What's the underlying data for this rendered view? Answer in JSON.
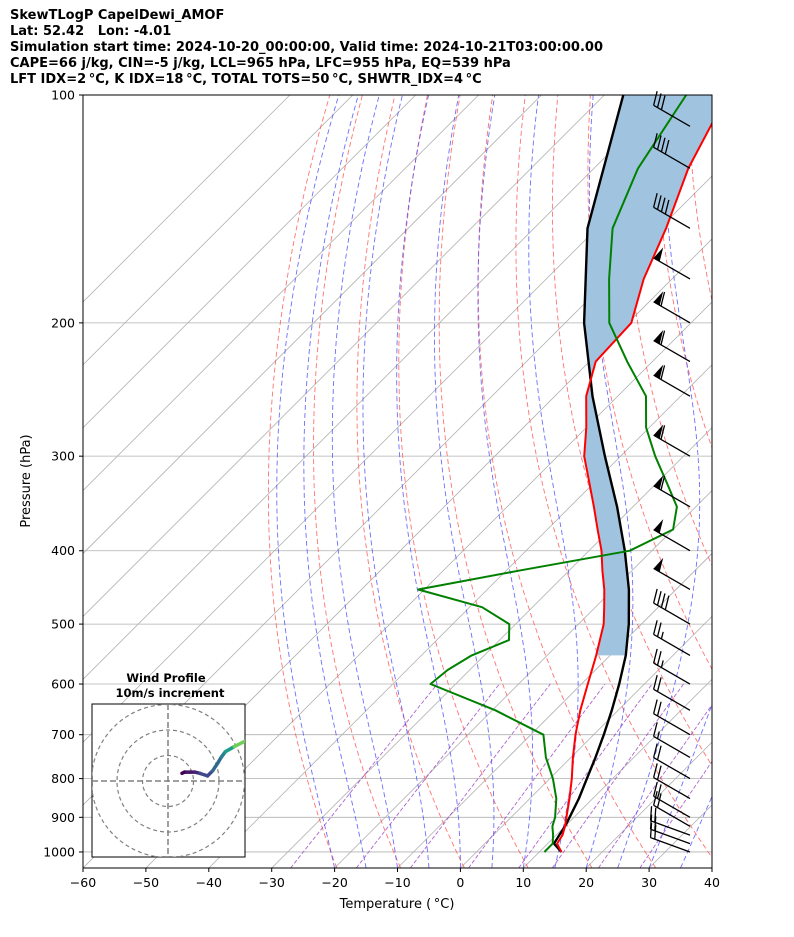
{
  "header": {
    "line1": "SkewTLogP CapelDewi_AMOF",
    "line2": "Lat: 52.42   Lon: -4.01",
    "line3": "Simulation start time: 2024-10-20_00:00:00, Valid time: 2024-10-21T03:00:00.00",
    "line4": "CAPE=66 j/kg, CIN=-5 j/kg, LCL=965 hPa, LFC=955 hPa, EQ=539 hPa",
    "line5": "LFT IDX=2 °C, K IDX=18 °C, TOTAL TOTS=50 °C, SHWTR_IDX=4 °C"
  },
  "chart_data": {
    "type": "line",
    "subtype": "skew-T log-P",
    "xlabel": "Temperature ( °C)",
    "ylabel": "Pressure (hPa)",
    "xlim": [
      -60,
      40
    ],
    "ylim": [
      1050,
      100
    ],
    "y_scale": "log",
    "x_ticks": [
      -60,
      -50,
      -40,
      -30,
      -20,
      -10,
      0,
      10,
      20,
      30,
      40
    ],
    "x_tick_labels": [
      "−60",
      "−50",
      "−40",
      "−30",
      "−20",
      "−10",
      "0",
      "10",
      "20",
      "30",
      "40"
    ],
    "y_ticks": [
      100,
      200,
      300,
      400,
      500,
      600,
      700,
      800,
      900,
      1000
    ],
    "y_tick_labels": [
      "100",
      "200",
      "300",
      "400",
      "500",
      "600",
      "700",
      "800",
      "900",
      "1000"
    ],
    "grid": true,
    "colors": {
      "temperature": "#ff0000",
      "dewpoint": "#008000",
      "parcel": "#000000",
      "cape_fill": "#a0c4e0",
      "dry_adiabat": "#ff5050",
      "moist_adiabat": "#4a4aff",
      "mixing_ratio": "#9a40c0",
      "isotherm": "#b0b0b0"
    },
    "series": [
      {
        "key": "temperature",
        "pressure": [
          1000,
          975,
          950,
          925,
          900,
          850,
          800,
          750,
          700,
          650,
          600,
          550,
          500,
          475,
          450,
          425,
          400,
          375,
          350,
          325,
          300,
          275,
          250,
          225,
          200,
          175,
          150,
          125,
          100
        ],
        "values": [
          13.5,
          11.5,
          11.0,
          10.0,
          8.8,
          6.3,
          3.5,
          0.3,
          -2.9,
          -6.0,
          -9.0,
          -12.2,
          -16.0,
          -18.6,
          -21.4,
          -24.7,
          -28.0,
          -32.0,
          -36.2,
          -40.8,
          -45.8,
          -50.0,
          -55.0,
          -59.0,
          -59.5,
          -64.5,
          -69.0,
          -75.0,
          -80.5
        ]
      },
      {
        "key": "dewpoint",
        "pressure": [
          1000,
          975,
          950,
          925,
          900,
          850,
          800,
          750,
          700,
          650,
          600,
          575,
          550,
          525,
          500,
          475,
          450,
          425,
          400,
          375,
          350,
          325,
          300,
          275,
          250,
          225,
          200,
          175,
          150,
          125,
          100
        ],
        "values": [
          10.8,
          10.8,
          9.5,
          8.0,
          7.0,
          4.2,
          0.5,
          -4.0,
          -8.0,
          -19.5,
          -34.0,
          -33.5,
          -32.0,
          -28.5,
          -31.0,
          -38.0,
          -51.0,
          -38.0,
          -23.5,
          -20.0,
          -23.0,
          -28.5,
          -34.5,
          -40.5,
          -45.5,
          -54.0,
          -63.0,
          -70.0,
          -77.5,
          -83.0,
          -87.0
        ]
      },
      {
        "key": "parcel",
        "pressure": [
          1000,
          975,
          950,
          925,
          900,
          850,
          800,
          750,
          700,
          650,
          600,
          550,
          500,
          450,
          400,
          350,
          300,
          250,
          200,
          150,
          100
        ],
        "values": [
          13.5,
          11.0,
          10.5,
          10.0,
          9.3,
          7.8,
          5.9,
          3.9,
          1.6,
          -1.0,
          -4.0,
          -7.5,
          -12.0,
          -17.5,
          -24.3,
          -32.5,
          -42.5,
          -54.0,
          -67.0,
          -81.5,
          -97.0
        ]
      }
    ],
    "wind_barbs": [
      {
        "pressure": 1000,
        "speed_kt": 20,
        "dir_deg": 290
      },
      {
        "pressure": 975,
        "speed_kt": 20,
        "dir_deg": 290
      },
      {
        "pressure": 950,
        "speed_kt": 20,
        "dir_deg": 290
      },
      {
        "pressure": 925,
        "speed_kt": 20,
        "dir_deg": 300
      },
      {
        "pressure": 900,
        "speed_kt": 20,
        "dir_deg": 300
      },
      {
        "pressure": 850,
        "speed_kt": 20,
        "dir_deg": 300
      },
      {
        "pressure": 800,
        "speed_kt": 20,
        "dir_deg": 300
      },
      {
        "pressure": 750,
        "speed_kt": 15,
        "dir_deg": 300
      },
      {
        "pressure": 700,
        "speed_kt": 20,
        "dir_deg": 300
      },
      {
        "pressure": 650,
        "speed_kt": 20,
        "dir_deg": 300
      },
      {
        "pressure": 600,
        "speed_kt": 25,
        "dir_deg": 300
      },
      {
        "pressure": 550,
        "speed_kt": 25,
        "dir_deg": 300
      },
      {
        "pressure": 500,
        "speed_kt": 40,
        "dir_deg": 300
      },
      {
        "pressure": 450,
        "speed_kt": 50,
        "dir_deg": 300
      },
      {
        "pressure": 400,
        "speed_kt": 50,
        "dir_deg": 300
      },
      {
        "pressure": 350,
        "speed_kt": 60,
        "dir_deg": 300
      },
      {
        "pressure": 300,
        "speed_kt": 60,
        "dir_deg": 300
      },
      {
        "pressure": 250,
        "speed_kt": 60,
        "dir_deg": 300
      },
      {
        "pressure": 225,
        "speed_kt": 60,
        "dir_deg": 300
      },
      {
        "pressure": 200,
        "speed_kt": 60,
        "dir_deg": 300
      },
      {
        "pressure": 175,
        "speed_kt": 50,
        "dir_deg": 300
      },
      {
        "pressure": 150,
        "speed_kt": 40,
        "dir_deg": 300
      },
      {
        "pressure": 125,
        "speed_kt": 40,
        "dir_deg": 300
      },
      {
        "pressure": 110,
        "speed_kt": 30,
        "dir_deg": 300
      }
    ],
    "hodograph": {
      "title": "Wind Profile",
      "subtitle": "10m/s increment",
      "u": [
        5.5,
        6.5,
        7.5,
        8.5,
        10.5,
        12.5,
        15.5,
        17.5,
        19.5,
        21.0,
        22.5,
        26.0,
        33.0
      ],
      "v": [
        3.0,
        3.5,
        3.5,
        3.5,
        3.5,
        3.0,
        2.0,
        4.0,
        7.0,
        9.5,
        11.5,
        13.5,
        17.0
      ],
      "colors": [
        "#440154",
        "#440154",
        "#46166b",
        "#46166b",
        "#482576",
        "#3e4a89",
        "#3e4a89",
        "#31688e",
        "#31688e",
        "#26828e",
        "#1f9e89",
        "#6ece58",
        "#fde725"
      ]
    }
  }
}
